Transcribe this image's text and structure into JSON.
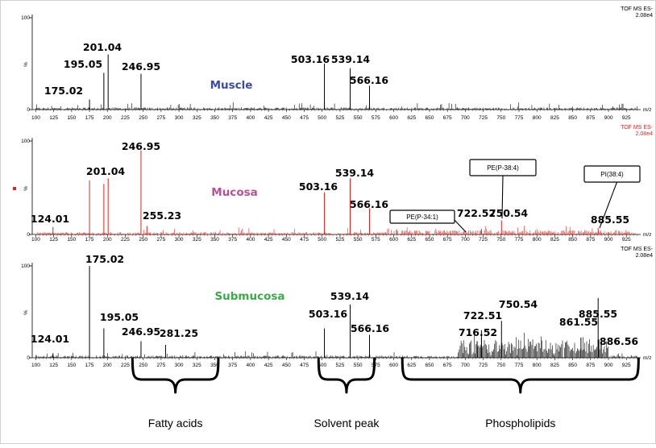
{
  "chart_data": {
    "type": "mass_spectrum",
    "x_axis": {
      "unit": "m/z",
      "range": [
        95,
        945
      ],
      "ticks": [
        "100",
        "125",
        "150",
        "175",
        "200",
        "225",
        "250",
        "275",
        "300",
        "325",
        "350",
        "375",
        "400",
        "425",
        "450",
        "475",
        "500",
        "525",
        "550",
        "575",
        "600",
        "625",
        "650",
        "675",
        "700",
        "725",
        "750",
        "775",
        "800",
        "825",
        "850",
        "875",
        "900",
        "925"
      ]
    },
    "y_axis": {
      "ticks": [
        "100",
        "%",
        "0"
      ],
      "range": [
        0,
        100
      ]
    },
    "panels": [
      {
        "tissue": "Muscle",
        "tissue_color": "#3B4BA5",
        "line_color": "#000000",
        "header": [
          "TOF MS ES-",
          "2.08e4"
        ],
        "header_color": "#000000",
        "marker": false,
        "peaks": [
          {
            "mz": 175.02,
            "intensity": 11
          },
          {
            "mz": 195.05,
            "intensity": 40
          },
          {
            "mz": 201.04,
            "intensity": 60
          },
          {
            "mz": 246.95,
            "intensity": 39
          },
          {
            "mz": 503.16,
            "intensity": 50
          },
          {
            "mz": 539.14,
            "intensity": 45
          },
          {
            "mz": 566.16,
            "intensity": 26
          }
        ],
        "labels": [
          {
            "text": "175.02",
            "mz": 175.02
          },
          {
            "text": "195.05",
            "mz": 195.05
          },
          {
            "text": "201.04",
            "mz": 201.04
          },
          {
            "text": "246.95",
            "mz": 246.95
          },
          {
            "text": "503.16",
            "mz": 503.16
          },
          {
            "text": "539.14",
            "mz": 539.14
          },
          {
            "text": "566.16",
            "mz": 566.16
          }
        ],
        "boxes": []
      },
      {
        "tissue": "Mucosa",
        "tissue_color": "#B8509A",
        "line_color": "#E8211E",
        "header": [
          "TOF MS ES-",
          "2.08e4"
        ],
        "header_color": "#E8211E",
        "marker": true,
        "peaks": [
          {
            "mz": 124.01,
            "intensity": 8
          },
          {
            "mz": 175.02,
            "intensity": 58
          },
          {
            "mz": 195.05,
            "intensity": 54
          },
          {
            "mz": 201.04,
            "intensity": 60
          },
          {
            "mz": 246.95,
            "intensity": 90
          },
          {
            "mz": 255.23,
            "intensity": 9
          },
          {
            "mz": 503.16,
            "intensity": 45
          },
          {
            "mz": 539.14,
            "intensity": 60
          },
          {
            "mz": 566.16,
            "intensity": 28
          },
          {
            "mz": 722.52,
            "intensity": 6
          },
          {
            "mz": 750.54,
            "intensity": 15
          },
          {
            "mz": 885.55,
            "intensity": 7
          }
        ],
        "labels": [
          {
            "text": "124.01",
            "mz": 124.01
          },
          {
            "text": "201.04",
            "mz": 201.04
          },
          {
            "text": "246.95",
            "mz": 246.95
          },
          {
            "text": "255.23",
            "mz": 255.23
          },
          {
            "text": "503.16",
            "mz": 503.16
          },
          {
            "text": "539.14",
            "mz": 539.14
          },
          {
            "text": "566.16",
            "mz": 566.16
          },
          {
            "text": "722.52",
            "mz": 722.52
          },
          {
            "text": "750.54",
            "mz": 750.54
          },
          {
            "text": "885.55",
            "mz": 885.55
          }
        ],
        "boxes": [
          {
            "text": "PE(P-38:4)",
            "mz": 750.54
          },
          {
            "text": "PI(38:4)",
            "mz": 885.55
          },
          {
            "text": "PE(P-34:1)",
            "mz": 702
          }
        ]
      },
      {
        "tissue": "Submucosa",
        "tissue_color": "#3BAA4A",
        "line_color": "#000000",
        "header": [
          "TOF MS ES-",
          "2.08e4"
        ],
        "header_color": "#000000",
        "marker": false,
        "peaks": [
          {
            "mz": 124.01,
            "intensity": 5
          },
          {
            "mz": 175.02,
            "intensity": 100
          },
          {
            "mz": 195.05,
            "intensity": 32
          },
          {
            "mz": 246.95,
            "intensity": 18
          },
          {
            "mz": 281.25,
            "intensity": 14
          },
          {
            "mz": 503.16,
            "intensity": 32
          },
          {
            "mz": 539.14,
            "intensity": 58
          },
          {
            "mz": 566.16,
            "intensity": 25
          },
          {
            "mz": 716.52,
            "intensity": 18
          },
          {
            "mz": 722.51,
            "intensity": 30
          },
          {
            "mz": 750.54,
            "intensity": 40
          },
          {
            "mz": 861.55,
            "intensity": 22
          },
          {
            "mz": 885.55,
            "intensity": 65
          },
          {
            "mz": 886.56,
            "intensity": 20
          }
        ],
        "labels": [
          {
            "text": "124.01",
            "mz": 124.01
          },
          {
            "text": "175.02",
            "mz": 175.02
          },
          {
            "text": "195.05",
            "mz": 195.05
          },
          {
            "text": "246.95",
            "mz": 246.95
          },
          {
            "text": "281.25",
            "mz": 281.25
          },
          {
            "text": "503.16",
            "mz": 503.16
          },
          {
            "text": "539.14",
            "mz": 539.14
          },
          {
            "text": "566.16",
            "mz": 566.16
          },
          {
            "text": "716.52",
            "mz": 716.52
          },
          {
            "text": "722.51",
            "mz": 722.51
          },
          {
            "text": "750.54",
            "mz": 750.54
          },
          {
            "text": "861.55",
            "mz": 861.55
          },
          {
            "text": "885.55",
            "mz": 885.55
          },
          {
            "text": "886.56",
            "mz": 886.56
          }
        ],
        "boxes": []
      }
    ],
    "regions": [
      {
        "label": "Fatty acids",
        "range": [
          235,
          355
        ]
      },
      {
        "label": "Solvent peak",
        "range": [
          495,
          573
        ]
      },
      {
        "label": "Phospholipids",
        "range": [
          612,
          942
        ]
      }
    ]
  }
}
